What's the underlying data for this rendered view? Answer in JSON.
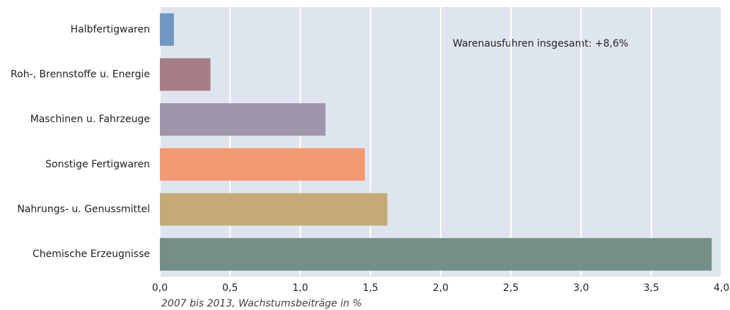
{
  "chart_data": {
    "type": "hbar",
    "categories": [
      "Halbfertigwaren",
      "Roh-, Brennstoffe u. Energie",
      "Maschinen u. Fahrzeuge",
      "Sonstige Fertigwaren",
      "Nahrungs- u. Genussmittel",
      "Chemische Erzeugnisse"
    ],
    "values": [
      0.1,
      0.36,
      1.18,
      1.46,
      1.62,
      3.93
    ],
    "colors": [
      "#7097c2",
      "#a67d86",
      "#9e97ab",
      "#f39a73",
      "#c4aa76",
      "#738f87"
    ],
    "xlim": [
      0,
      4
    ],
    "xticks": [
      {
        "value": 0,
        "label": "0,0"
      },
      {
        "value": 0.5,
        "label": "0,5"
      },
      {
        "value": 1,
        "label": "1,0"
      },
      {
        "value": 1.5,
        "label": "1,5"
      },
      {
        "value": 2,
        "label": "2,0"
      },
      {
        "value": 2.5,
        "label": "2,5"
      },
      {
        "value": 3,
        "label": "3,0"
      },
      {
        "value": 3.5,
        "label": "3,5"
      },
      {
        "value": 4,
        "label": "4,0"
      }
    ],
    "xlabel": "2007 bis 2013, Wachstumsbeiträge in %",
    "annotation": "Warenausfuhren insgesamt: +8,6%",
    "grid": true
  }
}
